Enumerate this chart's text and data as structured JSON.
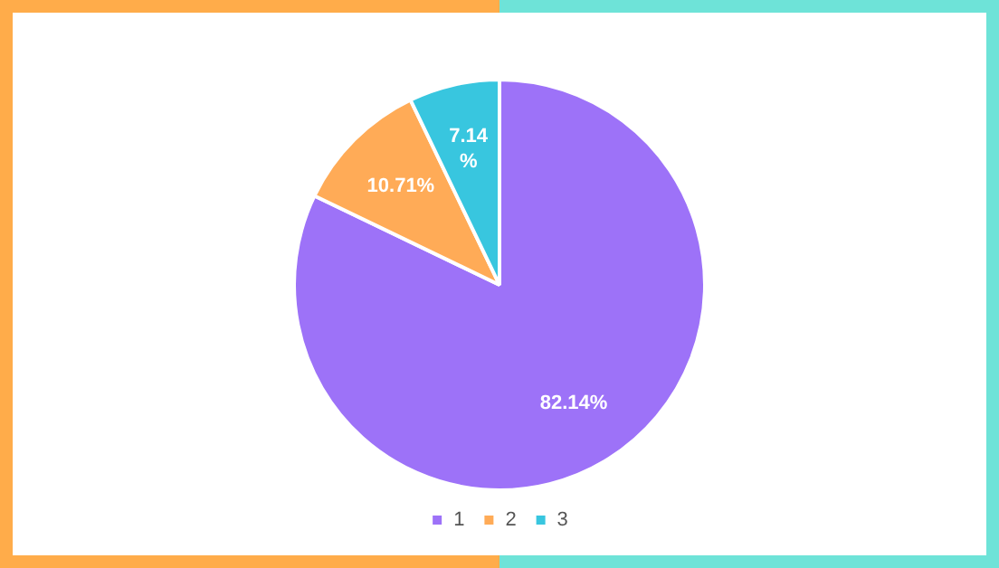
{
  "chart_data": {
    "type": "pie",
    "categories": [
      "1",
      "2",
      "3"
    ],
    "values": [
      82.14,
      10.71,
      7.14
    ],
    "colors": [
      "#9d72f8",
      "#ffab57",
      "#38c6df"
    ],
    "value_labels": [
      "82.14%",
      "10.71%",
      "7.14%"
    ],
    "legend": "bottom"
  }
}
